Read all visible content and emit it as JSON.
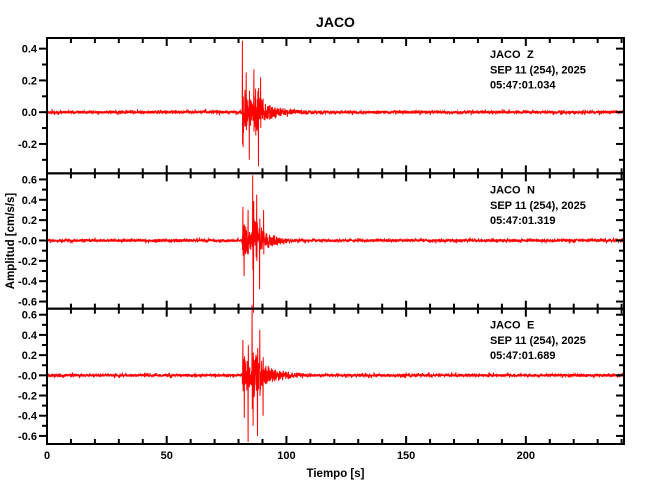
{
  "chart_data": {
    "type": "line",
    "title": "JACO",
    "xlabel": "Tiempo [s]",
    "ylabel": "Amplitud [cm/s/s]",
    "xlim": [
      0,
      241
    ],
    "x_major_ticks": [
      0,
      50,
      100,
      150,
      200
    ],
    "x_tick_labels": [
      "0",
      "50",
      "100",
      "150",
      "200"
    ],
    "x_minor_step": 10,
    "trace_color": "#ff0000",
    "frame_color": "#000000",
    "background_color": "#ffffff",
    "sample_dt_s": 0.08,
    "panels": [
      {
        "station": "JACO",
        "component": "Z",
        "date_line": "SEP 11 (254), 2025",
        "time_line": "05:47:01.034",
        "ylim": [
          -0.385,
          0.467
        ],
        "y_major_ticks": [
          0.4,
          0.2,
          0.0,
          -0.2
        ],
        "y_tick_labels": [
          "0.4",
          "0.2",
          "0.0",
          "-0.2"
        ],
        "y_minor_ticks": [
          0.3,
          0.1,
          -0.1,
          -0.3
        ],
        "noise_amp": 0.0085,
        "p_onset_s": 81.5,
        "p_amp": 0.15,
        "p_tau_s": 4.0,
        "s_onset_s": 86.0,
        "s_amp": 0.12,
        "s_tau_s": 5.0,
        "coda_amp": 0.03,
        "coda_tau_s": 12,
        "spikes": [
          [
            81.6,
            0.45
          ],
          [
            81.9,
            -0.22
          ],
          [
            83.2,
            0.25
          ],
          [
            84.5,
            -0.3
          ],
          [
            86.4,
            0.27
          ],
          [
            88.3,
            -0.34
          ],
          [
            89.2,
            0.22
          ]
        ],
        "seed": 11
      },
      {
        "station": "JACO",
        "component": "N",
        "date_line": "SEP 11 (254), 2025",
        "time_line": "05:47:01.319",
        "ylim": [
          -0.67,
          0.66
        ],
        "y_major_ticks": [
          0.6,
          0.4,
          0.2,
          0.0,
          -0.2,
          -0.4,
          -0.6
        ],
        "y_tick_labels": [
          "0.6",
          "0.4",
          "0.2",
          "-0.0",
          "-0.2",
          "-0.4",
          "-0.6"
        ],
        "y_minor_ticks": [
          0.5,
          0.3,
          0.1,
          -0.1,
          -0.3,
          -0.5
        ],
        "noise_amp": 0.013,
        "p_onset_s": 81.5,
        "p_amp": 0.16,
        "p_tau_s": 4.0,
        "s_onset_s": 85.8,
        "s_amp": 0.17,
        "s_tau_s": 5.0,
        "coda_amp": 0.04,
        "coda_tau_s": 12,
        "spikes": [
          [
            81.8,
            0.33
          ],
          [
            82.3,
            -0.35
          ],
          [
            84.0,
            0.3
          ],
          [
            85.9,
            0.64
          ],
          [
            86.2,
            -0.86
          ],
          [
            87.6,
            0.45
          ],
          [
            88.8,
            -0.48
          ],
          [
            90.5,
            0.3
          ]
        ],
        "seed": 22
      },
      {
        "station": "JACO",
        "component": "E",
        "date_line": "SEP 11 (254), 2025",
        "time_line": "05:47:01.689",
        "ylim": [
          -0.68,
          0.66
        ],
        "y_major_ticks": [
          0.6,
          0.4,
          0.2,
          0.0,
          -0.2,
          -0.4,
          -0.6
        ],
        "y_tick_labels": [
          "0.6",
          "0.4",
          "0.2",
          "-0.0",
          "-0.2",
          "-0.4",
          "-0.6"
        ],
        "y_minor_ticks": [
          0.5,
          0.3,
          0.1,
          -0.1,
          -0.3,
          -0.5
        ],
        "noise_amp": 0.013,
        "p_onset_s": 81.5,
        "p_amp": 0.16,
        "p_tau_s": 4.5,
        "s_onset_s": 85.6,
        "s_amp": 0.19,
        "s_tau_s": 6.0,
        "coda_amp": 0.04,
        "coda_tau_s": 13,
        "spikes": [
          [
            81.8,
            0.35
          ],
          [
            82.4,
            -0.42
          ],
          [
            84.0,
            -0.66
          ],
          [
            85.7,
            0.74
          ],
          [
            86.1,
            -0.5
          ],
          [
            87.9,
            -0.6
          ],
          [
            88.9,
            0.45
          ],
          [
            90.2,
            -0.4
          ]
        ],
        "seed": 33
      }
    ]
  }
}
